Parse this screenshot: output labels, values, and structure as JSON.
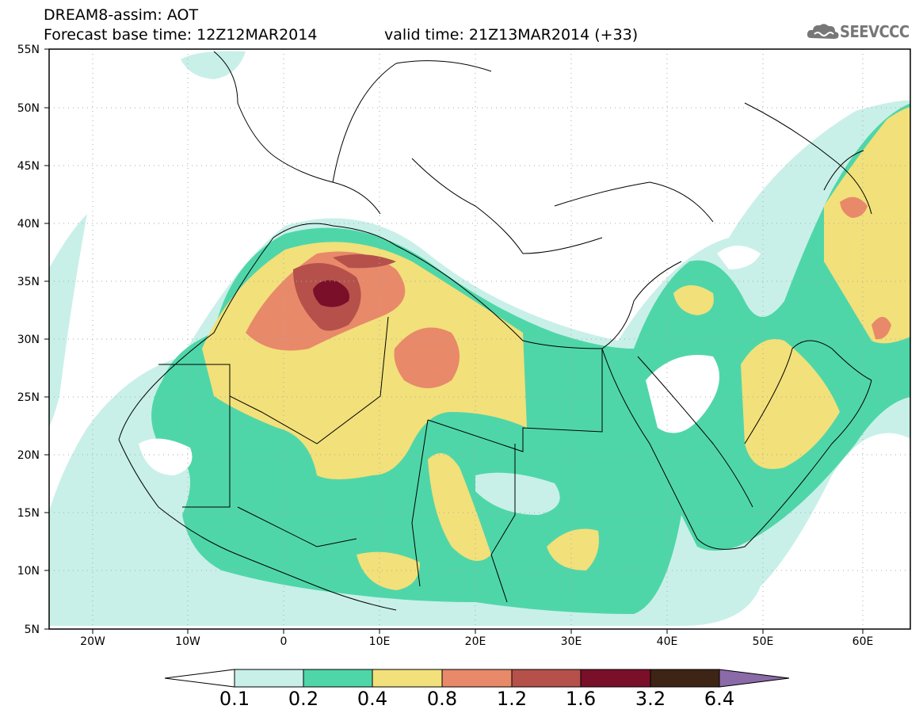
{
  "header": {
    "model_title": "DREAM8-assim: AOT",
    "base_time": "Forecast base time: 12Z12MAR2014",
    "valid_time": "valid time: 21Z13MAR2014 (+33)",
    "logo_text": "SEEVCCC"
  },
  "map": {
    "lat_labels": [
      "55N",
      "50N",
      "45N",
      "40N",
      "35N",
      "30N",
      "25N",
      "20N",
      "15N",
      "10N",
      "5N"
    ],
    "lon_labels": [
      "20W",
      "10W",
      "0",
      "10E",
      "20E",
      "30E",
      "40E",
      "50E",
      "60E"
    ],
    "lat_range": [
      5,
      55
    ],
    "lon_range": [
      -25,
      65
    ],
    "grid": "dotted"
  },
  "colorbar": {
    "labels": [
      "0.1",
      "0.2",
      "0.4",
      "0.8",
      "1.2",
      "1.6",
      "3.2",
      "6.4"
    ],
    "colors": [
      "#ffffff",
      "#c8f0e8",
      "#4fd6a8",
      "#f2e07a",
      "#e8896a",
      "#b5514a",
      "#7a0f2a",
      "#3d2415",
      "#8b6aa8"
    ]
  }
}
